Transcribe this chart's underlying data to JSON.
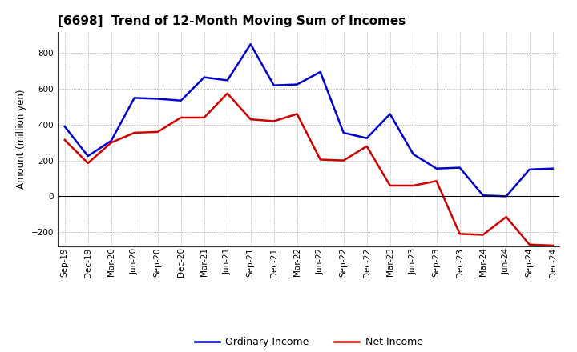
{
  "title": "[6698]  Trend of 12-Month Moving Sum of Incomes",
  "ylabel": "Amount (million yen)",
  "x_labels": [
    "Sep-19",
    "Dec-19",
    "Mar-20",
    "Jun-20",
    "Sep-20",
    "Dec-20",
    "Mar-21",
    "Jun-21",
    "Sep-21",
    "Dec-21",
    "Mar-22",
    "Jun-22",
    "Sep-22",
    "Dec-22",
    "Mar-23",
    "Jun-23",
    "Sep-23",
    "Dec-23",
    "Mar-24",
    "Jun-24",
    "Sep-24",
    "Dec-24"
  ],
  "ordinary_income": [
    390,
    225,
    310,
    550,
    545,
    535,
    665,
    648,
    850,
    620,
    625,
    695,
    355,
    325,
    460,
    235,
    155,
    160,
    5,
    0,
    150,
    155
  ],
  "net_income": [
    315,
    185,
    300,
    355,
    360,
    440,
    440,
    575,
    430,
    420,
    460,
    205,
    200,
    280,
    60,
    60,
    85,
    -210,
    -215,
    -115,
    -270,
    -275
  ],
  "ordinary_color": "#0000cc",
  "net_color": "#cc0000",
  "ylim": [
    -280,
    920
  ],
  "yticks": [
    -200,
    0,
    200,
    400,
    600,
    800
  ],
  "background_color": "#ffffff",
  "grid_color": "#999999",
  "title_fontsize": 11,
  "ylabel_fontsize": 8.5,
  "tick_fontsize": 7.5,
  "legend_fontsize": 9,
  "linewidth": 1.8
}
